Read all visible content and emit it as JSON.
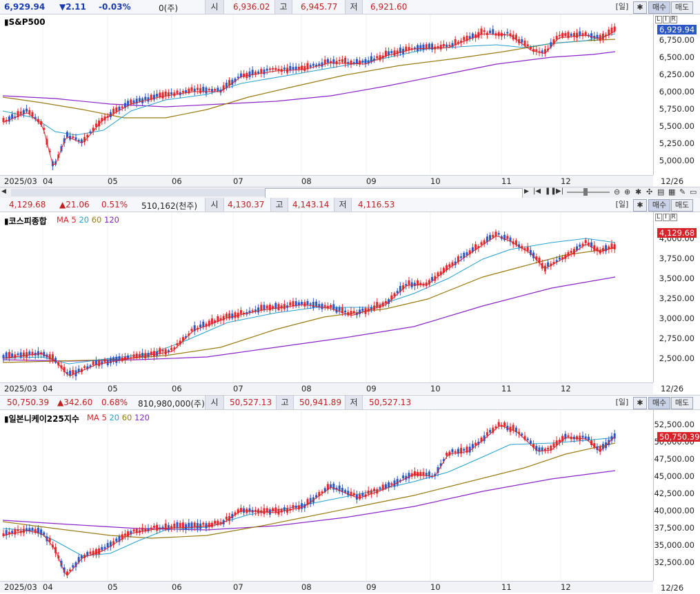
{
  "panels": [
    {
      "info": {
        "price": "6,929.94",
        "change": "▼2.11",
        "pct": "-0.03%",
        "volume": "0(주)",
        "open_lbl": "시",
        "open": "6,936.02",
        "high_lbl": "고",
        "high": "6,945.77",
        "low_lbl": "저",
        "low": "6,921.60"
      },
      "title": "S&P500",
      "ma_prefix": "",
      "ma_values": [],
      "current": "6,929.94",
      "ticks": [
        "6,750.00",
        "6,500.00",
        "6,250.00",
        "6,000.00",
        "5,750.00",
        "5,500.00",
        "5,250.00",
        "5,000.00"
      ],
      "dates": [
        "2025/03",
        "04",
        "05",
        "06",
        "07",
        "08",
        "09",
        "10",
        "11",
        "12"
      ],
      "end_date": "12/26"
    },
    {
      "info": {
        "price": "4,129.68",
        "change": "▲21.06",
        "pct": "0.51%",
        "volume": "510,162(천주)",
        "open_lbl": "시",
        "open": "4,130.37",
        "high_lbl": "고",
        "high": "4,143.14",
        "low_lbl": "저",
        "low": "4,116.53"
      },
      "title": "코스피종합",
      "ma_prefix": "MA",
      "ma_values": [
        "5",
        "20",
        "60",
        "120"
      ],
      "current": "4,129.68",
      "ticks": [
        "4,000.00",
        "3,750.00",
        "3,500.00",
        "3,250.00",
        "3,000.00",
        "2,750.00",
        "2,500.00"
      ],
      "dates": [
        "2025/03",
        "04",
        "05",
        "06",
        "07",
        "08",
        "09",
        "10",
        "11",
        "12"
      ],
      "end_date": "12/26"
    },
    {
      "info": {
        "price": "50,750.39",
        "change": "▲342.60",
        "pct": "0.68%",
        "volume": "810,980,000(주)",
        "open_lbl": "시",
        "open": "50,527.13",
        "high_lbl": "고",
        "high": "50,941.89",
        "low_lbl": "저",
        "low": "50,527.13"
      },
      "title": "일본니케이225지수",
      "ma_prefix": "MA",
      "ma_values": [
        "5",
        "20",
        "60",
        "120"
      ],
      "current": "50,750.39",
      "ticks": [
        "52,500.00",
        "50,000.00",
        "47,500.00",
        "45,000.00",
        "42,500.00",
        "40,000.00",
        "37,500.00",
        "35,000.00",
        "32,500.00"
      ],
      "dates": [
        "2025/03",
        "04",
        "05",
        "06",
        "07",
        "08",
        "09",
        "10",
        "11",
        "12"
      ],
      "end_date": "12/26"
    }
  ],
  "buttons": {
    "period": "[일]",
    "buy": "매수",
    "sell": "매도",
    "settings_icon": "gear-icon"
  },
  "colors": {
    "up": "#e8262a",
    "down": "#2a56c6",
    "ma5": "#d8222a",
    "ma20": "#22a0d0",
    "ma60": "#9a7a10",
    "ma120": "#8a22c8"
  }
}
